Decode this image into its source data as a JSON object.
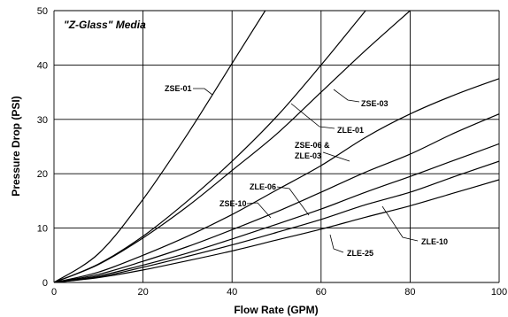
{
  "chart_data": {
    "type": "line",
    "title": "\"Z-Glass\" Media",
    "xlabel": "Flow Rate (GPM)",
    "ylabel": "Pressure Drop (PSI)",
    "xlim": [
      0,
      100
    ],
    "ylim": [
      0,
      50
    ],
    "xticks": [
      0,
      20,
      40,
      60,
      80,
      100
    ],
    "yticks": [
      0,
      10,
      20,
      30,
      40,
      50
    ],
    "grid": true,
    "x": [
      0,
      10,
      20,
      30,
      40,
      50,
      60,
      70,
      80,
      90,
      100
    ],
    "series": [
      {
        "name": "ZSE-01",
        "values": [
          0,
          5.3,
          15.3,
          27.3,
          40.3,
          null,
          null,
          null,
          null,
          null,
          null
        ]
      },
      {
        "name": "ZLE-01",
        "values": [
          0,
          3.4,
          8.5,
          15.0,
          22.3,
          30.5,
          40.0,
          50.0,
          null,
          null,
          null
        ]
      },
      {
        "name": "ZSE-03",
        "values": [
          0,
          3.3,
          8.2,
          14.0,
          20.6,
          27.3,
          35.0,
          42.7,
          50.0,
          null,
          null
        ]
      },
      {
        "name": "ZSE-06 & ZLE-03",
        "values": [
          0,
          1.9,
          5.0,
          8.5,
          12.5,
          17.0,
          21.5,
          26.7,
          31.0,
          34.5,
          37.5
        ]
      },
      {
        "name": "ZLE-06",
        "values": [
          0,
          1.5,
          3.9,
          6.6,
          9.7,
          13.0,
          16.6,
          20.3,
          23.6,
          27.5,
          31.0
        ]
      },
      {
        "name": "ZSE-10",
        "values": [
          0,
          1.2,
          3.2,
          5.4,
          8.0,
          10.7,
          13.5,
          16.6,
          19.5,
          22.5,
          25.5
        ]
      },
      {
        "name": "ZLE-10",
        "values": [
          0,
          1.0,
          2.8,
          4.8,
          6.9,
          9.2,
          11.6,
          14.3,
          16.6,
          19.5,
          22.3
        ]
      },
      {
        "name": "ZLE-25",
        "values": [
          0,
          0.9,
          2.3,
          4.0,
          5.8,
          7.8,
          9.8,
          12.0,
          14.1,
          16.5,
          18.9
        ]
      }
    ],
    "annotations": [
      {
        "label": "ZSE-01"
      },
      {
        "label": "ZSE-03"
      },
      {
        "label": "ZLE-01"
      },
      {
        "label_lines": [
          "ZSE-06 &",
          "ZLE-03"
        ]
      },
      {
        "label": "ZLE-06"
      },
      {
        "label": "ZSE-10"
      },
      {
        "label": "ZLE-10"
      },
      {
        "label": "ZLE-25"
      }
    ]
  }
}
